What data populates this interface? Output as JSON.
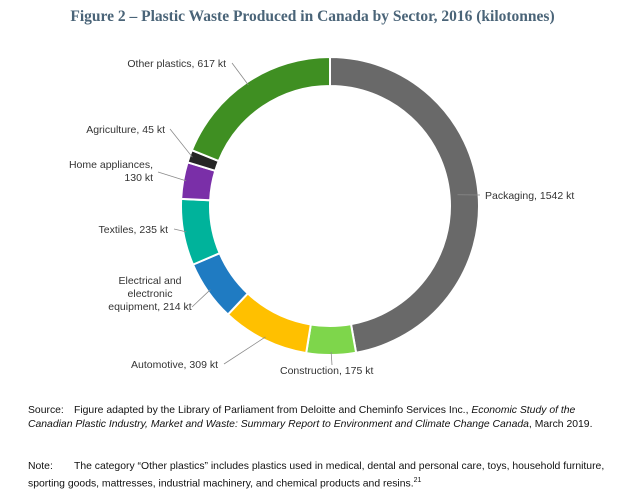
{
  "header": {
    "title": "Figure 2 – Plastic Waste Produced in Canada by Sector, 2016 (kilotonnes)"
  },
  "chart_data": {
    "type": "pie",
    "variant": "donut",
    "title": "Figure 2 – Plastic Waste Produced in Canada by Sector, 2016 (kilotonnes)",
    "unit": "kt",
    "slices": [
      {
        "label": "Packaging",
        "display": [
          "Packaging, 1542 kt"
        ],
        "value": 1542,
        "color": "#696969"
      },
      {
        "label": "Construction",
        "display": [
          "Construction, 175 kt"
        ],
        "value": 175,
        "color": "#7ed64b"
      },
      {
        "label": "Automotive",
        "display": [
          "Automotive, 309 kt"
        ],
        "value": 309,
        "color": "#ffc000"
      },
      {
        "label": "Electrical and electronic equipment",
        "display": [
          "Electrical and",
          "electronic",
          "equipment, 214 kt"
        ],
        "value": 214,
        "color": "#1f7bc2"
      },
      {
        "label": "Textiles",
        "display": [
          "Textiles, 235 kt"
        ],
        "value": 235,
        "color": "#00b39b"
      },
      {
        "label": "Home appliances",
        "display": [
          "Home appliances,",
          "130 kt"
        ],
        "value": 130,
        "color": "#7a2fa8"
      },
      {
        "label": "Agriculture",
        "display": [
          "Agriculture, 45 kt"
        ],
        "value": 45,
        "color": "#262626"
      },
      {
        "label": "Other plastics",
        "display": [
          "Other plastics, 617 kt"
        ],
        "value": 617,
        "color": "#3f8f22"
      }
    ]
  },
  "footer": {
    "source_tag": "Source:",
    "source_pre": "Figure adapted by the Library of Parliament from Deloitte and Cheminfo Services Inc., ",
    "source_italic": "Economic Study of the Canadian Plastic Industry, Market and Waste: Summary Report to Environment and Climate Change Canada",
    "source_post": ", March 2019.",
    "note_tag": "Note:",
    "note_text": "The category “Other plastics” includes plastics used in medical, dental and personal care, toys, household furniture, sporting goods, mattresses, industrial machinery, and chemical products and resins.",
    "note_ref": "21"
  }
}
